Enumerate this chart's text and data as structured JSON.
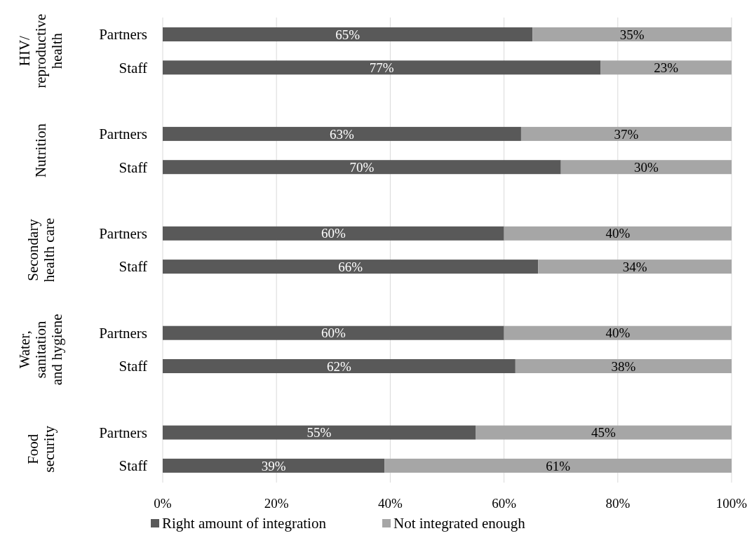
{
  "chart_data": {
    "type": "bar",
    "orientation": "horizontal",
    "stacked": true,
    "categories": [
      "Partners",
      "Staff",
      null,
      "Partners",
      "Staff",
      null,
      "Partners",
      "Staff",
      null,
      "Partners",
      "Staff",
      null,
      "Partners",
      "Staff"
    ],
    "series": [
      {
        "name": "Right amount of integration",
        "color": "#595959",
        "values": [
          65,
          77,
          null,
          63,
          70,
          null,
          60,
          66,
          null,
          60,
          62,
          null,
          55,
          39
        ],
        "value_labels": [
          "65%",
          "77%",
          null,
          "63%",
          "70%",
          null,
          "60%",
          "66%",
          null,
          "60%",
          "62%",
          null,
          "55%",
          "39%"
        ]
      },
      {
        "name": "Not integrated enough",
        "color": "#a6a6a6",
        "values": [
          35,
          23,
          null,
          37,
          30,
          null,
          40,
          34,
          null,
          40,
          38,
          null,
          45,
          61
        ],
        "value_labels": [
          "35%",
          "23%",
          null,
          "37%",
          "30%",
          null,
          "40%",
          "34%",
          null,
          "40%",
          "38%",
          null,
          "45%",
          "61%"
        ]
      }
    ],
    "annotations": [
      "HIV/\nreproductive\nhealth",
      "Nutrition",
      "Secondary\nhealth care",
      "Water,\nsanitation\nand hygiene",
      "Food\nsecurity"
    ],
    "xlim": [
      0,
      100
    ],
    "xticks": [
      {
        "value": 0,
        "label": "0%"
      },
      {
        "value": 20,
        "label": "20%"
      },
      {
        "value": 40,
        "label": "40%"
      },
      {
        "value": 60,
        "label": "60%"
      },
      {
        "value": 80,
        "label": "80%"
      },
      {
        "value": 100,
        "label": "100%"
      }
    ],
    "grid": "x",
    "legend": "bottom"
  }
}
